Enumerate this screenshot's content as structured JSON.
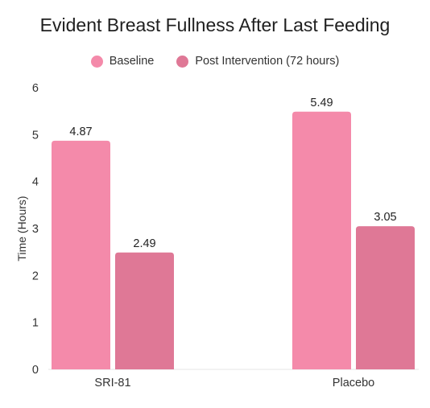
{
  "chart_data": {
    "type": "bar",
    "title": "Evident Breast Fullness After Last Feeding",
    "xlabel": "",
    "ylabel": "Time (Hours)",
    "ylim": [
      0,
      6
    ],
    "yticks": [
      0,
      1,
      2,
      3,
      4,
      5,
      6
    ],
    "categories": [
      "SRI-81",
      "Placebo"
    ],
    "series": [
      {
        "name": "Baseline",
        "values": [
          4.87,
          5.49
        ],
        "labels": [
          "4.87",
          "5.49"
        ],
        "color": "#f48aaa"
      },
      {
        "name": "Post Intervention (72 hours)",
        "values": [
          2.49,
          3.05
        ],
        "labels": [
          "2.49",
          "3.05"
        ],
        "color": "#df7896"
      }
    ],
    "grid": false,
    "legend_position": "top-center"
  }
}
